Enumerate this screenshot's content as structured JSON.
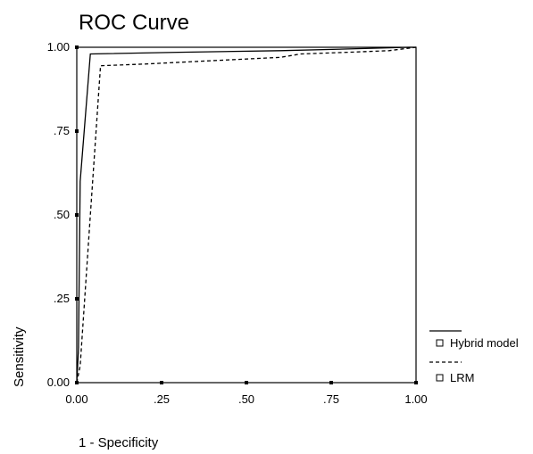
{
  "chart_data": {
    "type": "line",
    "title": "ROC Curve",
    "xlabel": "1 - Specificity",
    "ylabel": "Sensitivity",
    "xlim": [
      0,
      1
    ],
    "ylim": [
      0,
      1
    ],
    "x_ticks": [
      0,
      0.25,
      0.5,
      0.75,
      1
    ],
    "y_ticks": [
      0,
      0.25,
      0.5,
      0.75,
      1
    ],
    "x_tick_labels": [
      "0.00",
      ".25",
      ".50",
      ".75",
      "1.00"
    ],
    "y_tick_labels": [
      "0.00",
      ".25",
      ".50",
      ".75",
      "1.00"
    ],
    "grid": false,
    "legend_position": "right",
    "series": [
      {
        "name": "Hybrid model",
        "line_style": "solid",
        "color": "#000000",
        "x": [
          0,
          0.005,
          0.01,
          0.04,
          0.3,
          0.6,
          0.8,
          0.98,
          1
        ],
        "y": [
          0,
          0.1,
          0.6,
          0.98,
          0.985,
          0.99,
          0.995,
          1,
          1
        ]
      },
      {
        "name": "LRM",
        "line_style": "dashed",
        "color": "#000000",
        "x": [
          0,
          0.01,
          0.04,
          0.07,
          0.2,
          0.4,
          0.6,
          0.66,
          0.8,
          0.92,
          1
        ],
        "y": [
          0,
          0.05,
          0.5,
          0.945,
          0.95,
          0.96,
          0.97,
          0.98,
          0.985,
          0.99,
          1
        ]
      }
    ]
  }
}
